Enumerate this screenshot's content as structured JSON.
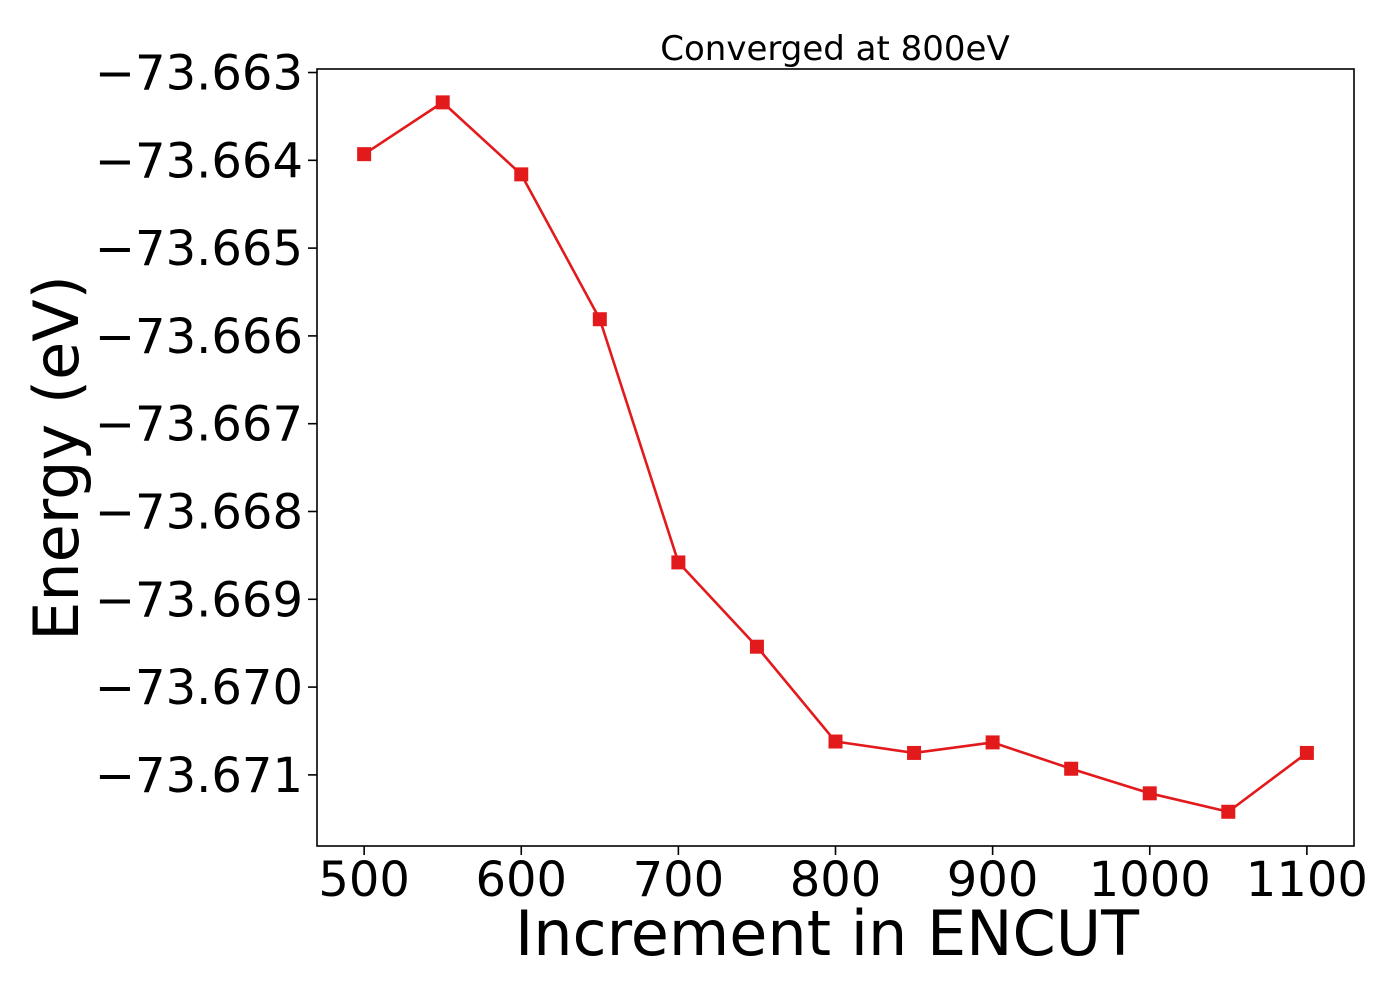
{
  "chart_data": {
    "type": "line",
    "title": "Converged at 800eV",
    "xlabel": "Increment in ENCUT",
    "ylabel": "Energy (eV)",
    "xlim": [
      470,
      1130
    ],
    "ylim": [
      -73.67181,
      -73.66296
    ],
    "x_ticks": [
      500,
      600,
      700,
      800,
      900,
      1000,
      1100
    ],
    "x_tick_labels": [
      "500",
      "600",
      "700",
      "800",
      "900",
      "1000",
      "1100"
    ],
    "y_ticks": [
      -73.663,
      -73.664,
      -73.665,
      -73.666,
      -73.667,
      -73.668,
      -73.669,
      -73.67,
      -73.671
    ],
    "y_tick_labels": [
      "−73.663",
      "−73.664",
      "−73.665",
      "−73.666",
      "−73.667",
      "−73.668",
      "−73.669",
      "−73.670",
      "−73.671"
    ],
    "grid": false,
    "line_color": "#e31a1c",
    "marker": "square",
    "series": [
      {
        "x": [
          500,
          550,
          600,
          650,
          700,
          750,
          800,
          850,
          900,
          950,
          1000,
          1050,
          1100
        ],
        "values": [
          -73.66393,
          -73.66334,
          -73.66416,
          -73.66581,
          -73.66858,
          -73.66954,
          -73.67062,
          -73.67075,
          -73.67063,
          -73.67093,
          -73.67121,
          -73.67142,
          -73.67075
        ]
      }
    ]
  }
}
